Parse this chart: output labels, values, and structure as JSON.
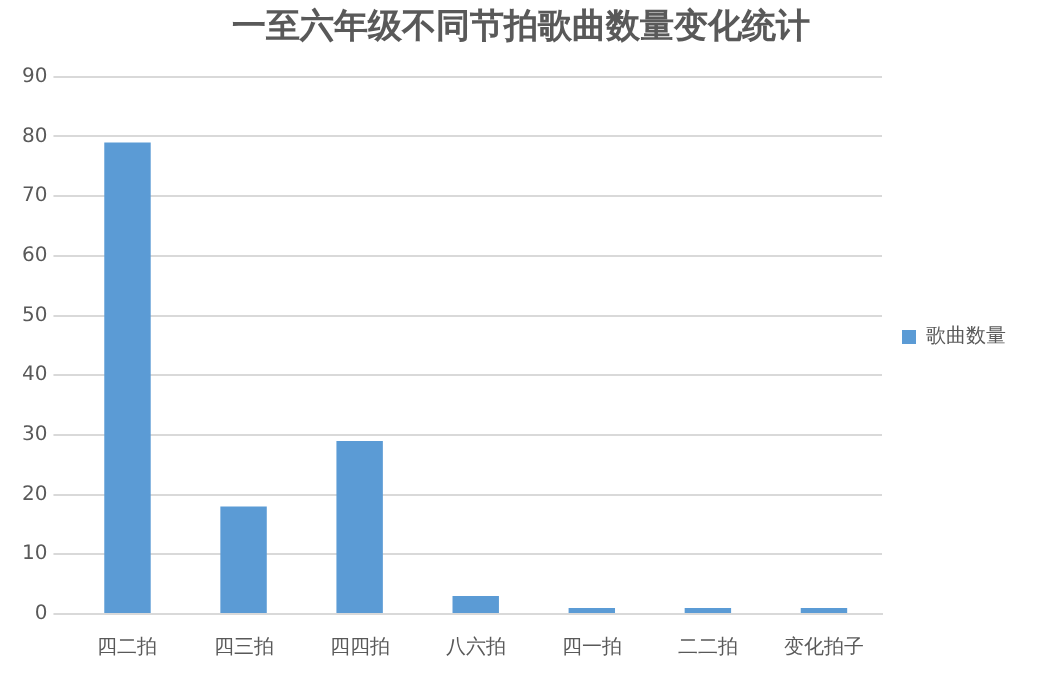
{
  "chart_data": {
    "type": "bar",
    "title": "一至六年级不同节拍歌曲数量变化统计",
    "categories": [
      "四二拍",
      "四三拍",
      "四四拍",
      "八六拍",
      "四一拍",
      "二二拍",
      "变化拍子"
    ],
    "series": [
      {
        "name": "歌曲数量",
        "color": "#5b9bd5",
        "values": [
          79,
          18,
          29,
          3,
          1,
          1,
          1
        ]
      }
    ],
    "ylim": [
      0,
      90
    ],
    "yticks": [
      0,
      10,
      20,
      30,
      40,
      50,
      60,
      70,
      80,
      90
    ],
    "grid": "y",
    "legend": "right"
  }
}
